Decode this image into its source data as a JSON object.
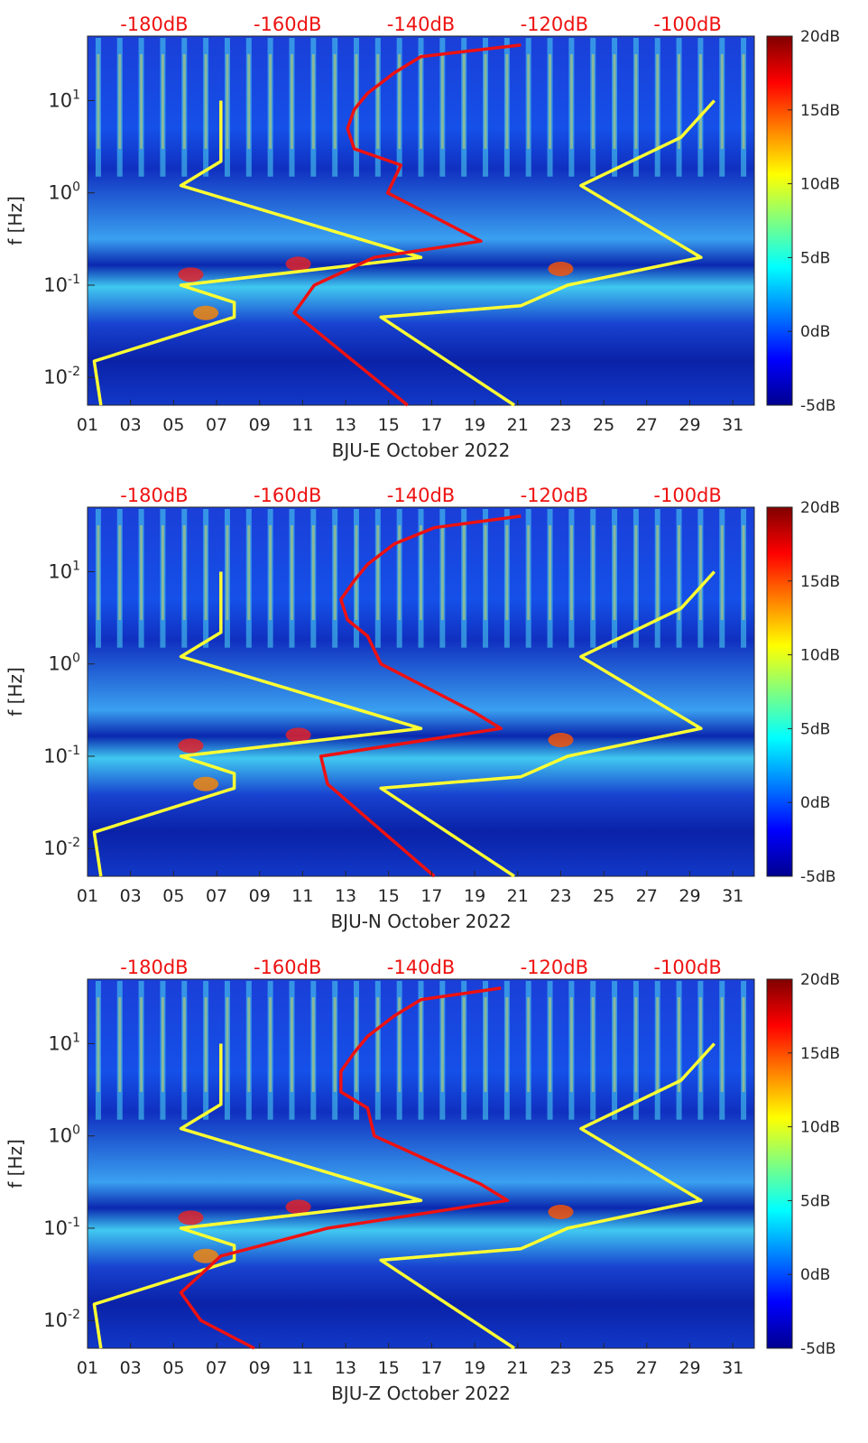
{
  "colorbar": {
    "min_db": -5,
    "max_db": 20,
    "ticks": [
      "20dB",
      "15dB",
      "10dB",
      "5dB",
      "0dB",
      "-5dB"
    ]
  },
  "noise_model_axis_labels": [
    "-180dB",
    "-160dB",
    "-140dB",
    "-120dB",
    "-100dB"
  ],
  "chart_data": [
    {
      "type": "heatmap",
      "ylabel": "f [Hz]",
      "xlabel": "BJU-E October 2022",
      "yscale": "log",
      "ylim": [
        0.005,
        50
      ],
      "xlim": [
        1,
        32
      ],
      "x_ticks": [
        "01",
        "03",
        "05",
        "07",
        "09",
        "11",
        "13",
        "15",
        "17",
        "19",
        "21",
        "23",
        "25",
        "27",
        "29",
        "31"
      ],
      "y_ticks": [
        "10^-2",
        "10^-1",
        "10^0",
        "10^1"
      ],
      "noise_models": {
        "nlnm": {
          "color": "#ffff33",
          "freq": [
            0.005,
            0.015,
            0.045,
            0.065,
            0.1,
            0.2,
            1.2,
            2.2,
            10
          ],
          "db": [
            -188,
            -189,
            -168,
            -168,
            -176,
            -140,
            -176,
            -170,
            -170
          ]
        },
        "nhnm": {
          "color": "#ffff33",
          "freq": [
            0.005,
            0.045,
            0.06,
            0.1,
            0.2,
            1.2,
            4,
            10
          ],
          "db": [
            -126,
            -146,
            -125,
            -118,
            -98,
            -116,
            -101,
            -96
          ]
        },
        "station_psd": {
          "color": "#ee1111",
          "freq": [
            0.005,
            0.05,
            0.1,
            0.2,
            0.3,
            1,
            2,
            3,
            5,
            8,
            12,
            20,
            30,
            40
          ],
          "db": [
            -142,
            -159,
            -156,
            -147,
            -131,
            -145,
            -143,
            -150,
            -151,
            -150,
            -148,
            -144,
            -140,
            -125
          ]
        }
      }
    },
    {
      "type": "heatmap",
      "ylabel": "f [Hz]",
      "xlabel": "BJU-N October 2022",
      "yscale": "log",
      "ylim": [
        0.005,
        50
      ],
      "xlim": [
        1,
        32
      ],
      "x_ticks": [
        "01",
        "03",
        "05",
        "07",
        "09",
        "11",
        "13",
        "15",
        "17",
        "19",
        "21",
        "23",
        "25",
        "27",
        "29",
        "31"
      ],
      "y_ticks": [
        "10^-2",
        "10^-1",
        "10^0",
        "10^1"
      ],
      "noise_models": {
        "nlnm": {
          "color": "#ffff33",
          "freq": [
            0.005,
            0.015,
            0.045,
            0.065,
            0.1,
            0.2,
            1.2,
            2.2,
            10
          ],
          "db": [
            -188,
            -189,
            -168,
            -168,
            -176,
            -140,
            -176,
            -170,
            -170
          ]
        },
        "nhnm": {
          "color": "#ffff33",
          "freq": [
            0.005,
            0.045,
            0.06,
            0.1,
            0.2,
            1.2,
            4,
            10
          ],
          "db": [
            -126,
            -146,
            -125,
            -118,
            -98,
            -116,
            -101,
            -96
          ]
        },
        "station_psd": {
          "color": "#ee1111",
          "freq": [
            0.005,
            0.05,
            0.1,
            0.2,
            0.3,
            1,
            2,
            3,
            5,
            8,
            12,
            20,
            30,
            40
          ],
          "db": [
            -138,
            -154,
            -155,
            -128,
            -132,
            -146,
            -148,
            -151,
            -152,
            -150,
            -148,
            -144,
            -138,
            -125
          ]
        }
      }
    },
    {
      "type": "heatmap",
      "ylabel": "f [Hz]",
      "xlabel": "BJU-Z October 2022",
      "yscale": "log",
      "ylim": [
        0.005,
        50
      ],
      "xlim": [
        1,
        32
      ],
      "x_ticks": [
        "01",
        "03",
        "05",
        "07",
        "09",
        "11",
        "13",
        "15",
        "17",
        "19",
        "21",
        "23",
        "25",
        "27",
        "29",
        "31"
      ],
      "y_ticks": [
        "10^-2",
        "10^-1",
        "10^0",
        "10^1"
      ],
      "noise_models": {
        "nlnm": {
          "color": "#ffff33",
          "freq": [
            0.005,
            0.015,
            0.045,
            0.065,
            0.1,
            0.2,
            1.2,
            2.2,
            10
          ],
          "db": [
            -188,
            -189,
            -168,
            -168,
            -176,
            -140,
            -176,
            -170,
            -170
          ]
        },
        "nhnm": {
          "color": "#ffff33",
          "freq": [
            0.005,
            0.045,
            0.06,
            0.1,
            0.2,
            1.2,
            4,
            10
          ],
          "db": [
            -126,
            -146,
            -125,
            -118,
            -98,
            -116,
            -101,
            -96
          ]
        },
        "station_psd": {
          "color": "#ee1111",
          "freq": [
            0.005,
            0.01,
            0.02,
            0.05,
            0.1,
            0.2,
            0.3,
            1,
            2,
            3,
            5,
            8,
            12,
            20,
            30,
            40
          ],
          "db": [
            -165,
            -173,
            -176,
            -170,
            -154,
            -127,
            -131,
            -147,
            -148,
            -152,
            -152,
            -150,
            -148,
            -144,
            -140,
            -128
          ]
        }
      }
    }
  ]
}
